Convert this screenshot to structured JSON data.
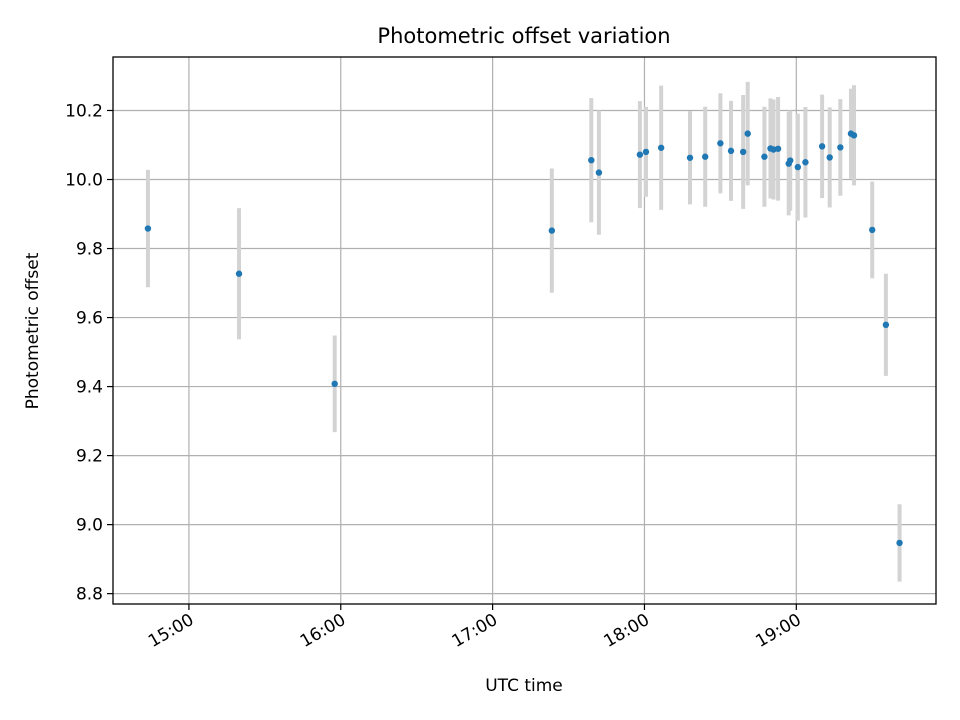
{
  "chart_data": {
    "type": "scatter",
    "title": "Photometric offset variation",
    "xlabel": "UTC time",
    "ylabel": "Photometric offset",
    "grid": true,
    "x_ticks": [
      "15:00",
      "16:00",
      "17:00",
      "18:00",
      "19:00"
    ],
    "x_tick_values": [
      15.0,
      16.0,
      17.0,
      18.0,
      19.0
    ],
    "xlim": [
      14.5,
      19.92
    ],
    "y_ticks": [
      "8.8",
      "9.0",
      "9.2",
      "9.4",
      "9.6",
      "9.8",
      "10.0",
      "10.2"
    ],
    "y_tick_values": [
      8.8,
      9.0,
      9.2,
      9.4,
      9.6,
      9.8,
      10.0,
      10.2
    ],
    "ylim": [
      8.77,
      10.355
    ],
    "colors": {
      "point": "#1f77b4",
      "errorbar": "#d3d3d3",
      "grid": "#b0b0b0"
    },
    "points": [
      {
        "x": 14.73,
        "y": 9.858,
        "err": 0.17
      },
      {
        "x": 15.33,
        "y": 9.727,
        "err": 0.19
      },
      {
        "x": 15.96,
        "y": 9.408,
        "err": 0.14
      },
      {
        "x": 17.39,
        "y": 9.852,
        "err": 0.18
      },
      {
        "x": 17.65,
        "y": 10.056,
        "err": 0.18
      },
      {
        "x": 17.7,
        "y": 10.02,
        "err": 0.18
      },
      {
        "x": 17.97,
        "y": 10.072,
        "err": 0.155
      },
      {
        "x": 18.01,
        "y": 10.08,
        "err": 0.13
      },
      {
        "x": 18.11,
        "y": 10.092,
        "err": 0.18
      },
      {
        "x": 18.3,
        "y": 10.063,
        "err": 0.135
      },
      {
        "x": 18.4,
        "y": 10.066,
        "err": 0.145
      },
      {
        "x": 18.5,
        "y": 10.105,
        "err": 0.145
      },
      {
        "x": 18.57,
        "y": 10.083,
        "err": 0.145
      },
      {
        "x": 18.65,
        "y": 10.08,
        "err": 0.165
      },
      {
        "x": 18.68,
        "y": 10.133,
        "err": 0.15
      },
      {
        "x": 18.79,
        "y": 10.066,
        "err": 0.145
      },
      {
        "x": 18.83,
        "y": 10.09,
        "err": 0.145
      },
      {
        "x": 18.85,
        "y": 10.087,
        "err": 0.145
      },
      {
        "x": 18.88,
        "y": 10.089,
        "err": 0.15
      },
      {
        "x": 18.95,
        "y": 10.046,
        "err": 0.15
      },
      {
        "x": 18.96,
        "y": 10.055,
        "err": 0.145
      },
      {
        "x": 19.01,
        "y": 10.036,
        "err": 0.155
      },
      {
        "x": 19.06,
        "y": 10.05,
        "err": 0.16
      },
      {
        "x": 19.17,
        "y": 10.096,
        "err": 0.15
      },
      {
        "x": 19.22,
        "y": 10.064,
        "err": 0.145
      },
      {
        "x": 19.29,
        "y": 10.093,
        "err": 0.14
      },
      {
        "x": 19.36,
        "y": 10.133,
        "err": 0.13
      },
      {
        "x": 19.38,
        "y": 10.128,
        "err": 0.145
      },
      {
        "x": 19.5,
        "y": 9.854,
        "err": 0.14
      },
      {
        "x": 19.59,
        "y": 9.579,
        "err": 0.148
      },
      {
        "x": 19.68,
        "y": 8.947,
        "err": 0.112
      }
    ]
  }
}
